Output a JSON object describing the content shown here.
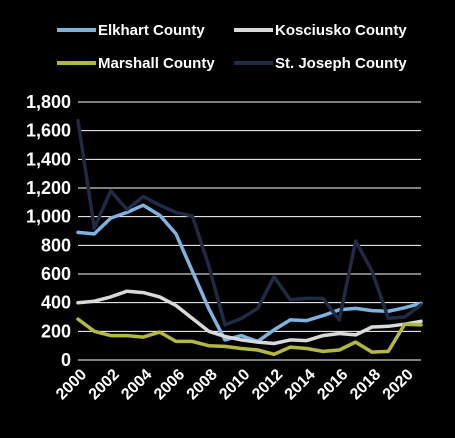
{
  "chart_data": {
    "type": "line",
    "title": "",
    "xlabel": "",
    "ylabel": "",
    "x": [
      2000,
      2001,
      2002,
      2003,
      2004,
      2005,
      2006,
      2007,
      2008,
      2009,
      2010,
      2011,
      2012,
      2013,
      2014,
      2015,
      2016,
      2017,
      2018,
      2019,
      2020,
      2021
    ],
    "x_tick_labels": [
      "2000",
      "2002",
      "2004",
      "2006",
      "2008",
      "2010",
      "2012",
      "2014",
      "2016",
      "2018",
      "2020"
    ],
    "ylim": [
      0,
      1800
    ],
    "y_tick_labels": [
      "0",
      "200",
      "400",
      "600",
      "800",
      "1,000",
      "1,200",
      "1,400",
      "1,600",
      "1,800"
    ],
    "grid": "horizontal",
    "legend_position": "top",
    "series": [
      {
        "name": "Elkhart County",
        "color": "#7fb2df",
        "values": [
          890,
          880,
          990,
          1030,
          1080,
          1010,
          880,
          620,
          360,
          140,
          170,
          130,
          210,
          280,
          275,
          310,
          350,
          360,
          345,
          340,
          365,
          395
        ]
      },
      {
        "name": "Kosciusko County",
        "color": "#d9d9d9",
        "values": [
          400,
          410,
          440,
          480,
          470,
          440,
          380,
          290,
          200,
          165,
          140,
          125,
          115,
          140,
          135,
          170,
          185,
          175,
          230,
          235,
          250,
          270
        ]
      },
      {
        "name": "Marshall County",
        "color": "#b5b83f",
        "values": [
          285,
          200,
          170,
          170,
          160,
          195,
          130,
          130,
          100,
          95,
          80,
          70,
          40,
          90,
          80,
          60,
          70,
          125,
          55,
          60,
          250,
          245
        ]
      },
      {
        "name": "St. Joseph County",
        "color": "#1f2a44",
        "values": [
          1670,
          920,
          1180,
          1050,
          1140,
          1080,
          1030,
          1005,
          660,
          245,
          290,
          360,
          580,
          420,
          430,
          430,
          280,
          830,
          620,
          290,
          300,
          385
        ]
      }
    ]
  }
}
